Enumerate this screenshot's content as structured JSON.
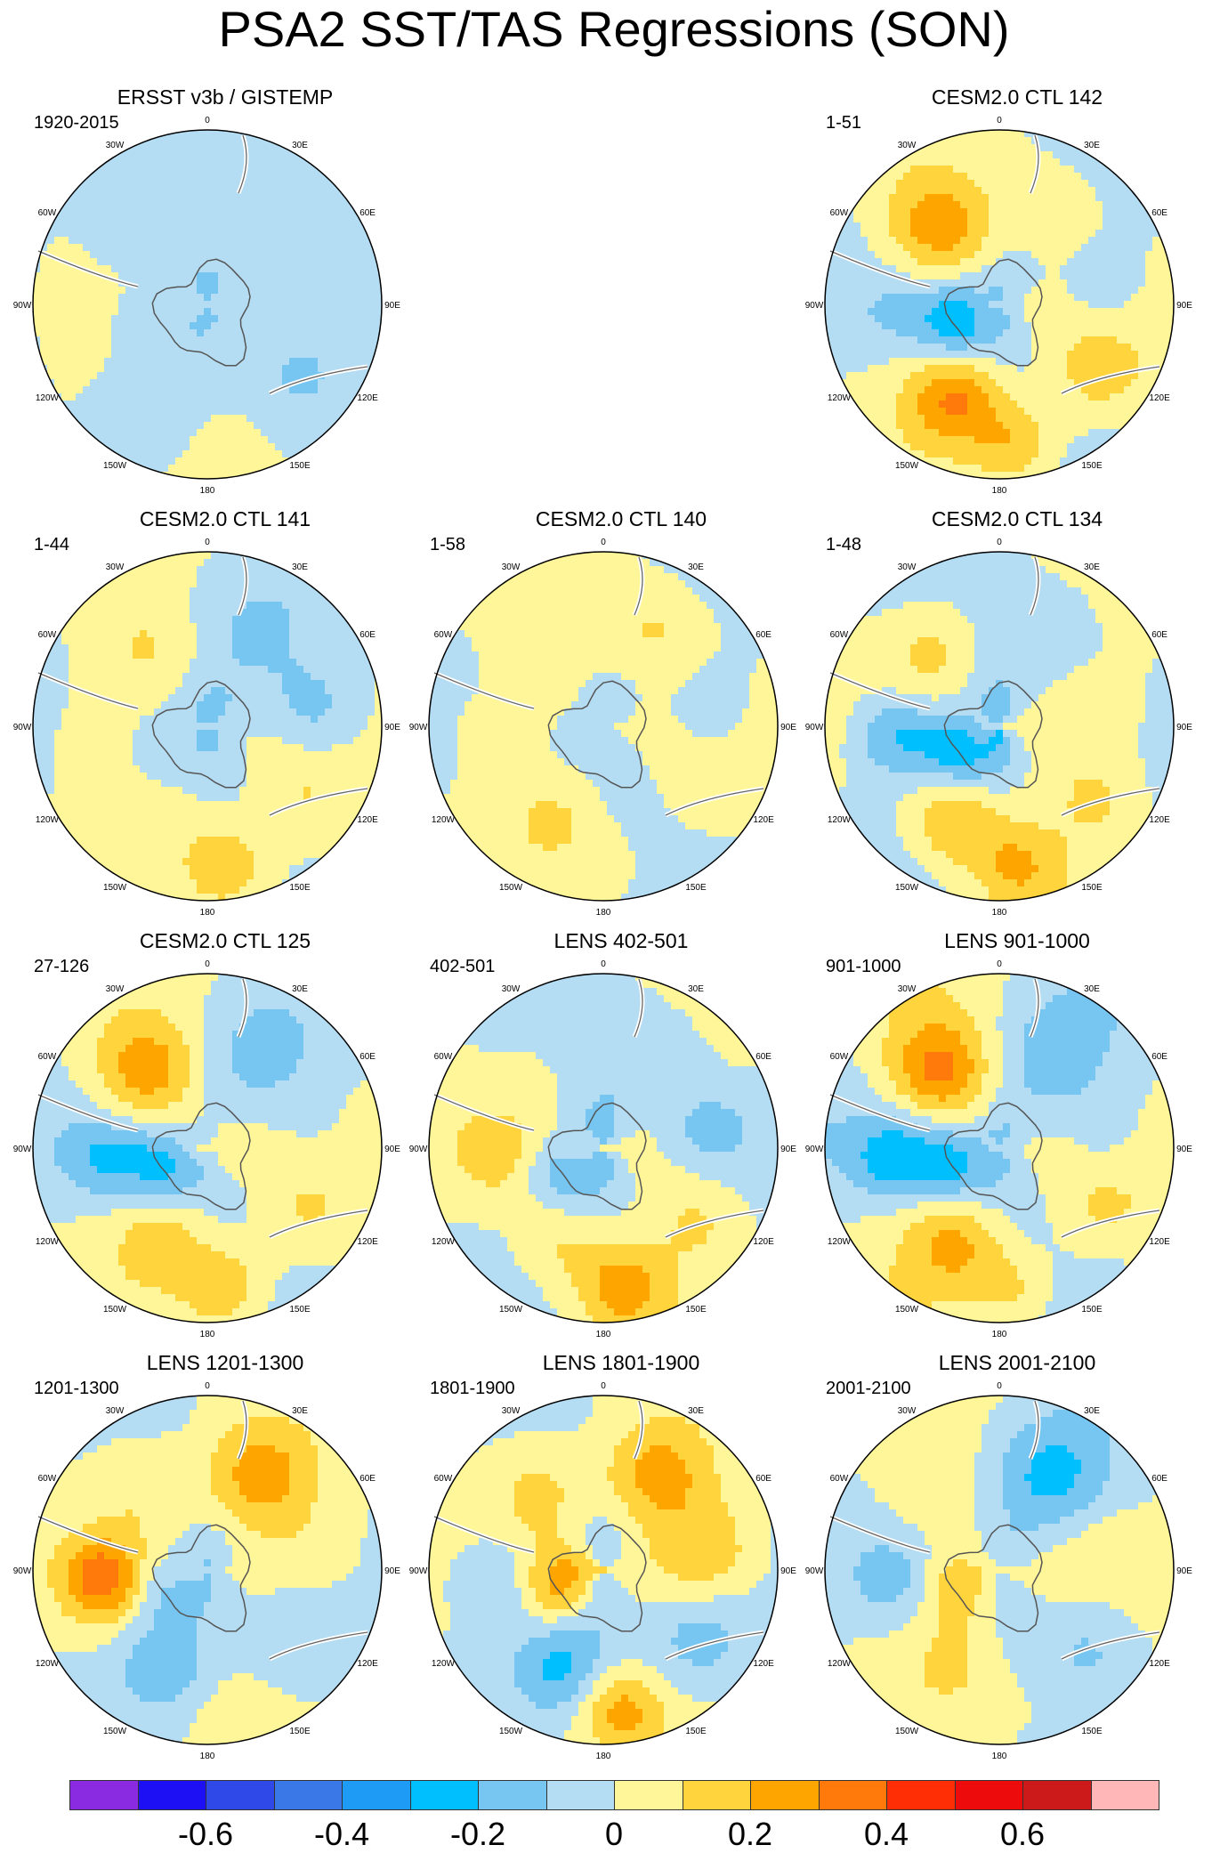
{
  "title": "PSA2 SST/TAS Regressions (SON)",
  "longitude_labels": [
    "0",
    "30E",
    "60E",
    "90E",
    "120E",
    "150E",
    "180",
    "150W",
    "120W",
    "90W",
    "60W",
    "30W"
  ],
  "panels": [
    {
      "title": "ERSST v3b / GISTEMP",
      "period": "1920-2015",
      "pattern": [
        -0.05,
        -0.05,
        0.0,
        -0.1,
        -0.05,
        0.05,
        -0.12,
        -0.05,
        0.0,
        0.05,
        -0.08
      ]
    },
    {
      "title": "CESM2.0 CTL 142",
      "period": "1-51",
      "pattern": [
        0.25,
        0.1,
        -0.1,
        -0.3,
        0.3,
        0.2,
        0.15,
        -0.1,
        0.1,
        0.05,
        -0.05
      ]
    },
    {
      "title": "CESM2.0 CTL 141",
      "period": "1-44",
      "pattern": [
        0.1,
        -0.1,
        0.05,
        -0.1,
        0.05,
        0.2,
        0.1,
        -0.15,
        0.05,
        0.05,
        -0.1
      ]
    },
    {
      "title": "CESM2.0 CTL 140",
      "period": "1-58",
      "pattern": [
        0.05,
        0.15,
        0.1,
        -0.05,
        0.1,
        0.05,
        0.05,
        -0.1,
        0.1,
        0.05,
        -0.05
      ]
    },
    {
      "title": "CESM2.0 CTL 134",
      "period": "1-48",
      "pattern": [
        0.15,
        -0.1,
        -0.25,
        -0.3,
        0.25,
        0.2,
        0.1,
        0.05,
        -0.1,
        0.1,
        -0.05
      ]
    },
    {
      "title": "CESM2.0 CTL 125",
      "period": "27-126",
      "pattern": [
        0.25,
        -0.1,
        -0.2,
        -0.25,
        0.15,
        0.2,
        0.1,
        -0.05,
        0.1,
        0.05,
        0.05
      ]
    },
    {
      "title": "LENS 402-501",
      "period": "402-501",
      "pattern": [
        0.05,
        -0.1,
        0.1,
        -0.2,
        0.15,
        0.25,
        0.1,
        -0.15,
        -0.1,
        0.1,
        -0.05
      ]
    },
    {
      "title": "LENS 901-1000",
      "period": "901-1000",
      "pattern": [
        0.3,
        -0.1,
        -0.25,
        -0.25,
        0.2,
        0.15,
        0.1,
        -0.1,
        0.15,
        0.05,
        -0.05
      ]
    },
    {
      "title": "LENS 1201-1300",
      "period": "1201-1300",
      "pattern": [
        0.1,
        0.25,
        0.35,
        -0.15,
        -0.15,
        0.05,
        -0.1,
        0.05,
        -0.05,
        0.05,
        -0.05
      ]
    },
    {
      "title": "LENS 1801-1900",
      "period": "1801-1900",
      "pattern": [
        0.15,
        0.25,
        -0.15,
        0.2,
        -0.2,
        0.25,
        -0.15,
        0.15,
        -0.05,
        0.1,
        -0.05
      ]
    },
    {
      "title": "LENS 2001-2100",
      "period": "2001-2100",
      "pattern": [
        0.05,
        -0.2,
        -0.15,
        0.15,
        0.1,
        0.05,
        -0.1,
        0.05,
        0.1,
        0.05,
        -0.05
      ]
    }
  ],
  "colorbar": {
    "colors": [
      "#8A2BE2",
      "#1E10F5",
      "#2F49E8",
      "#3A78E8",
      "#1E9BF5",
      "#00BFFF",
      "#77C6F2",
      "#B4DCF2",
      "#FFF69A",
      "#FFD43C",
      "#FFA500",
      "#FF7A0A",
      "#FF2E05",
      "#EE0B0B",
      "#CC1A1A",
      "#FFB7B7"
    ],
    "labels": [
      "-0.6",
      "-0.4",
      "-0.2",
      "0",
      "0.2",
      "0.4",
      "0.6"
    ],
    "label_values": [
      -0.6,
      -0.4,
      -0.2,
      0,
      0.2,
      0.4,
      0.6
    ],
    "levels": [
      -0.7,
      -0.6,
      -0.5,
      -0.4,
      -0.3,
      -0.2,
      -0.1,
      0,
      0.1,
      0.2,
      0.3,
      0.4,
      0.5,
      0.6,
      0.7
    ]
  }
}
